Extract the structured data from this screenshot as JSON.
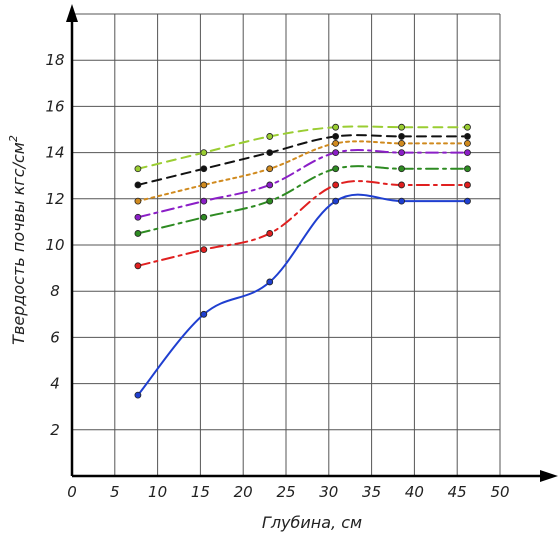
{
  "chart_data": {
    "type": "line",
    "title": "",
    "xlabel": "Глубина, см",
    "ylabel": "Твердость почвы кгс/см",
    "ylabel_superscript": "2",
    "xlim": [
      0,
      50
    ],
    "ylim": [
      0,
      20
    ],
    "x_ticks": [
      "0",
      "5",
      "10",
      "15",
      "20",
      "25",
      "30",
      "35",
      "40",
      "45",
      "50"
    ],
    "y_ticks": [
      "2",
      "4",
      "6",
      "8",
      "10",
      "12",
      "14",
      "16",
      "18"
    ],
    "grid": true,
    "x": [
      7.7,
      15.4,
      23.1,
      30.8,
      38.5,
      46.2
    ],
    "series": [
      {
        "color": "#9acd32",
        "style": "dash",
        "values": [
          13.3,
          14.0,
          14.7,
          15.1,
          15.1,
          15.1
        ]
      },
      {
        "color": "#111111",
        "style": "dash",
        "values": [
          12.6,
          13.3,
          14.0,
          14.7,
          14.7,
          14.7
        ]
      },
      {
        "color": "#d08a1e",
        "style": "dot",
        "values": [
          11.9,
          12.6,
          13.3,
          14.4,
          14.4,
          14.4
        ]
      },
      {
        "color": "#8b1fc7",
        "style": "dashdot",
        "values": [
          11.2,
          11.9,
          12.6,
          14.0,
          14.0,
          14.0
        ]
      },
      {
        "color": "#2e8b22",
        "style": "dashdot",
        "values": [
          10.5,
          11.2,
          11.9,
          13.3,
          13.3,
          13.3
        ]
      },
      {
        "color": "#e02020",
        "style": "dashdot",
        "values": [
          9.1,
          9.8,
          10.5,
          12.6,
          12.6,
          12.6
        ]
      },
      {
        "color": "#1f3fd0",
        "style": "solid",
        "values": [
          3.5,
          7.0,
          8.4,
          11.9,
          11.9,
          11.9
        ]
      }
    ]
  }
}
